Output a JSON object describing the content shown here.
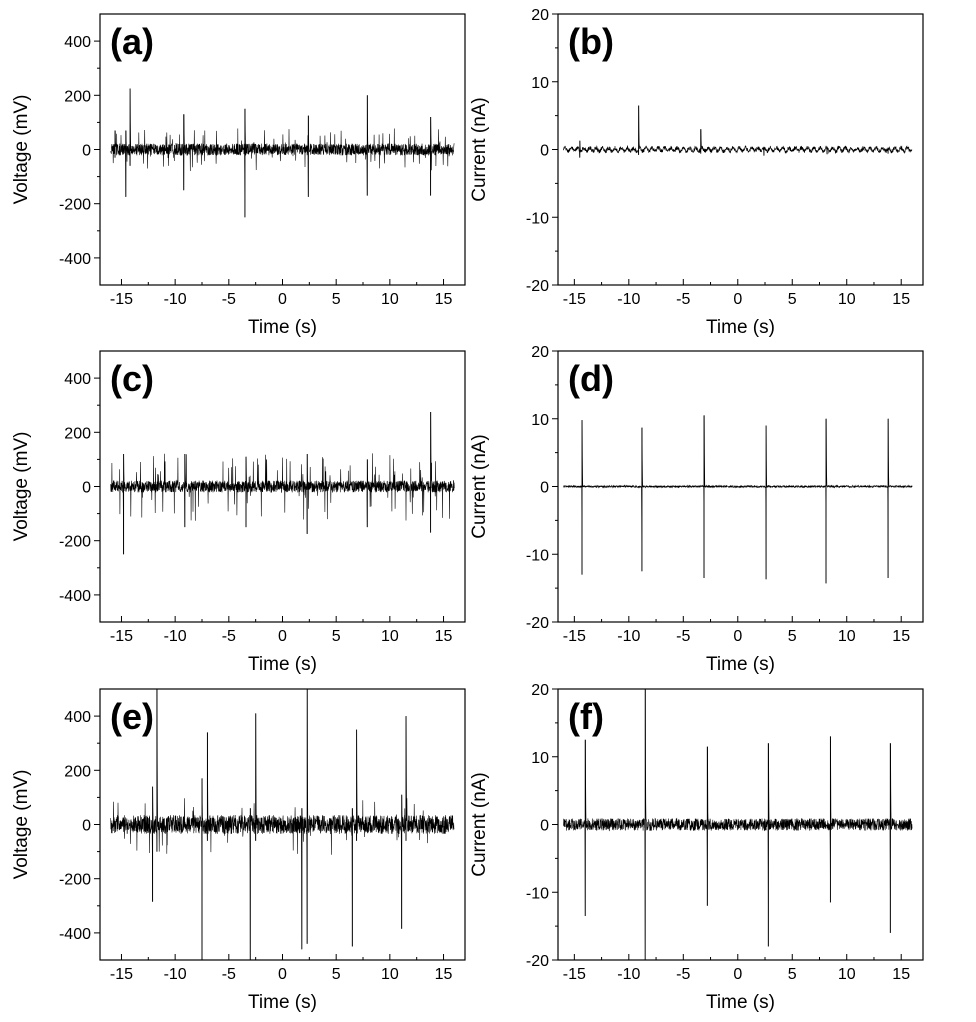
{
  "chart_data": [
    {
      "panel": "(a)",
      "type": "line",
      "xlabel": "Time (s)",
      "ylabel": "Voltage (mV)",
      "xlim": [
        -17,
        17
      ],
      "ylim": [
        -500,
        500
      ],
      "xticks": [
        -15,
        -10,
        -5,
        0,
        5,
        10,
        15
      ],
      "yticks": [
        -400,
        -200,
        0,
        200,
        400
      ],
      "noise": 22,
      "grass": 50,
      "grass_count": 90,
      "events": [
        {
          "t": -15.6,
          "pos": 70,
          "neg": -30
        },
        {
          "t": -14.6,
          "pos": 70,
          "neg": -175
        },
        {
          "t": -14.2,
          "pos": 225,
          "neg": -60
        },
        {
          "t": -9.2,
          "pos": 130,
          "neg": -150
        },
        {
          "t": -3.5,
          "pos": 150,
          "neg": -250
        },
        {
          "t": 2.4,
          "pos": 125,
          "neg": -175
        },
        {
          "t": 7.9,
          "pos": 200,
          "neg": -170
        },
        {
          "t": 13.8,
          "pos": 120,
          "neg": -170
        }
      ]
    },
    {
      "panel": "(b)",
      "type": "line",
      "xlabel": "Time (s)",
      "ylabel": "Current (nA)",
      "xlim": [
        -16.5,
        17
      ],
      "ylim": [
        -20,
        20
      ],
      "xticks": [
        -15,
        -10,
        -5,
        0,
        5,
        10,
        15
      ],
      "yticks": [
        -20,
        -10,
        0,
        10,
        20
      ],
      "noise": 0.3,
      "grass": 0,
      "grass_count": 0,
      "events": [
        {
          "t": -14.5,
          "pos": 1.3,
          "neg": -1.2
        },
        {
          "t": -9.1,
          "pos": 6.5,
          "neg": -0.8
        },
        {
          "t": -3.4,
          "pos": 3.0,
          "neg": -0.6
        },
        {
          "t": 2.4,
          "pos": 0.4,
          "neg": -0.9
        },
        {
          "t": 8.2,
          "pos": 0.4,
          "neg": -0.7
        },
        {
          "t": 13.8,
          "pos": 0.3,
          "neg": -0.6
        }
      ]
    },
    {
      "panel": "(c)",
      "type": "line",
      "xlabel": "Time (s)",
      "ylabel": "Voltage (mV)",
      "xlim": [
        -17,
        17
      ],
      "ylim": [
        -500,
        500
      ],
      "xticks": [
        -15,
        -10,
        -5,
        0,
        5,
        10,
        15
      ],
      "yticks": [
        -400,
        -200,
        0,
        200,
        400
      ],
      "noise": 22,
      "grass": 80,
      "grass_count": 110,
      "events": [
        {
          "t": -14.8,
          "pos": 120,
          "neg": -250
        },
        {
          "t": -9.1,
          "pos": 120,
          "neg": -150
        },
        {
          "t": -3.4,
          "pos": 110,
          "neg": -150
        },
        {
          "t": 2.3,
          "pos": 120,
          "neg": -175
        },
        {
          "t": 7.9,
          "pos": 100,
          "neg": -150
        },
        {
          "t": 13.8,
          "pos": 275,
          "neg": -170
        }
      ]
    },
    {
      "panel": "(d)",
      "type": "line",
      "xlabel": "Time (s)",
      "ylabel": "Current (nA)",
      "xlim": [
        -16.5,
        17
      ],
      "ylim": [
        -20,
        20
      ],
      "xticks": [
        -15,
        -10,
        -5,
        0,
        5,
        10,
        15
      ],
      "yticks": [
        -20,
        -10,
        0,
        10,
        20
      ],
      "noise": 0.15,
      "grass": 0,
      "grass_count": 0,
      "events": [
        {
          "t": -14.3,
          "pos": 9.8,
          "neg": -13.0
        },
        {
          "t": -8.8,
          "pos": 8.7,
          "neg": -12.5
        },
        {
          "t": -3.1,
          "pos": 10.5,
          "neg": -13.5
        },
        {
          "t": 2.6,
          "pos": 9.0,
          "neg": -13.7
        },
        {
          "t": 8.1,
          "pos": 10.0,
          "neg": -14.3
        },
        {
          "t": 13.8,
          "pos": 10.0,
          "neg": -13.5
        }
      ]
    },
    {
      "panel": "(e)",
      "type": "line",
      "xlabel": "Time (s)",
      "ylabel": "Voltage (mV)",
      "xlim": [
        -17,
        17
      ],
      "ylim": [
        -500,
        500
      ],
      "xticks": [
        -15,
        -10,
        -5,
        0,
        5,
        10,
        15
      ],
      "yticks": [
        -400,
        -200,
        0,
        200,
        400
      ],
      "noise": 35,
      "grass": 70,
      "grass_count": 40,
      "events": [
        {
          "t": -12.1,
          "pos": 140,
          "neg": -285
        },
        {
          "t": -11.7,
          "pos": 500,
          "neg": -100
        },
        {
          "t": -7.5,
          "pos": 170,
          "neg": -500
        },
        {
          "t": -7.0,
          "pos": 340,
          "neg": -60
        },
        {
          "t": -3.0,
          "pos": 60,
          "neg": -500
        },
        {
          "t": -2.5,
          "pos": 410,
          "neg": -60
        },
        {
          "t": 1.8,
          "pos": 60,
          "neg": -460
        },
        {
          "t": 2.3,
          "pos": 500,
          "neg": -440
        },
        {
          "t": 6.5,
          "pos": 60,
          "neg": -450
        },
        {
          "t": 6.9,
          "pos": 350,
          "neg": -60
        },
        {
          "t": 11.1,
          "pos": 110,
          "neg": -385
        },
        {
          "t": 11.5,
          "pos": 400,
          "neg": -60
        }
      ]
    },
    {
      "panel": "(f)",
      "type": "line",
      "xlabel": "Time (s)",
      "ylabel": "Current (nA)",
      "xlim": [
        -16.5,
        17
      ],
      "ylim": [
        -20,
        20
      ],
      "xticks": [
        -15,
        -10,
        -5,
        0,
        5,
        10,
        15
      ],
      "yticks": [
        -20,
        -10,
        0,
        10,
        20
      ],
      "noise": 0.9,
      "grass": 0,
      "grass_count": 0,
      "events": [
        {
          "t": -14.0,
          "pos": 12.5,
          "neg": -13.5
        },
        {
          "t": -8.5,
          "pos": 20.0,
          "neg": -20.0
        },
        {
          "t": -2.8,
          "pos": 11.5,
          "neg": -12.0
        },
        {
          "t": 2.8,
          "pos": 12.0,
          "neg": -18.0
        },
        {
          "t": 8.5,
          "pos": 13.0,
          "neg": -11.5
        },
        {
          "t": 14.0,
          "pos": 12.0,
          "neg": -16.0
        }
      ]
    }
  ]
}
